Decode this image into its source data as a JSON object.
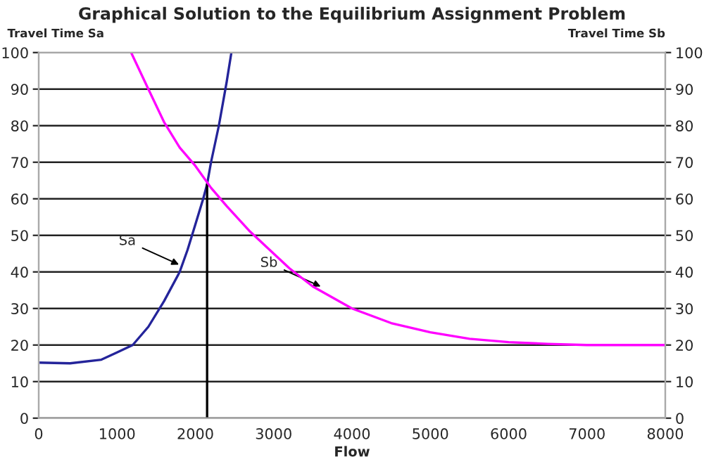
{
  "chart_data": {
    "type": "line",
    "title": "Graphical Solution to the Equilibrium Assignment Problem",
    "xlabel": "Flow",
    "ylabel": "Travel Time Sa",
    "y2label": "Travel Time Sb",
    "xlim": [
      0,
      8000
    ],
    "xticks": [
      0,
      1000,
      2000,
      3000,
      4000,
      5000,
      6000,
      7000,
      8000
    ],
    "ylim": [
      0,
      100
    ],
    "yticks": [
      0,
      10,
      20,
      30,
      40,
      50,
      60,
      70,
      80,
      90,
      100
    ],
    "y2lim": [
      0,
      100
    ],
    "y2ticks": [
      0,
      10,
      20,
      30,
      40,
      50,
      60,
      70,
      80,
      90,
      100
    ],
    "grid": "y",
    "legend": false,
    "marker": "none",
    "line_style": "solid",
    "series": [
      {
        "color": "#24249a",
        "x": [
          0,
          400,
          800,
          1000,
          1200,
          1400,
          1600,
          1800,
          1900,
          2000,
          2100,
          2150,
          2200,
          2300,
          2400,
          2460
        ],
        "values": [
          15.2,
          15,
          16,
          18,
          20,
          25,
          32,
          40,
          46,
          53,
          60,
          64,
          70,
          80,
          92,
          100
        ]
      },
      {
        "color": "#ff00ff",
        "axis": "y2",
        "x": [
          1180,
          1400,
          1600,
          1800,
          2000,
          2200,
          2400,
          2700,
          3000,
          3200,
          3500,
          4000,
          4500,
          5000,
          5500,
          6000,
          6500,
          7000,
          8000
        ],
        "values": [
          100,
          90,
          81,
          74,
          69,
          63,
          58,
          51,
          45,
          41,
          36,
          30,
          26,
          23.5,
          21.7,
          20.8,
          20.3,
          20,
          20
        ]
      },
      {
        "color": "#000000",
        "x": [
          2150,
          2150
        ],
        "values": [
          0,
          64
        ]
      }
    ],
    "annotations": [
      {
        "text": "Sa",
        "x": 1790,
        "y": 42
      },
      {
        "text": "Sb",
        "x": 3600,
        "y": 36
      }
    ]
  }
}
